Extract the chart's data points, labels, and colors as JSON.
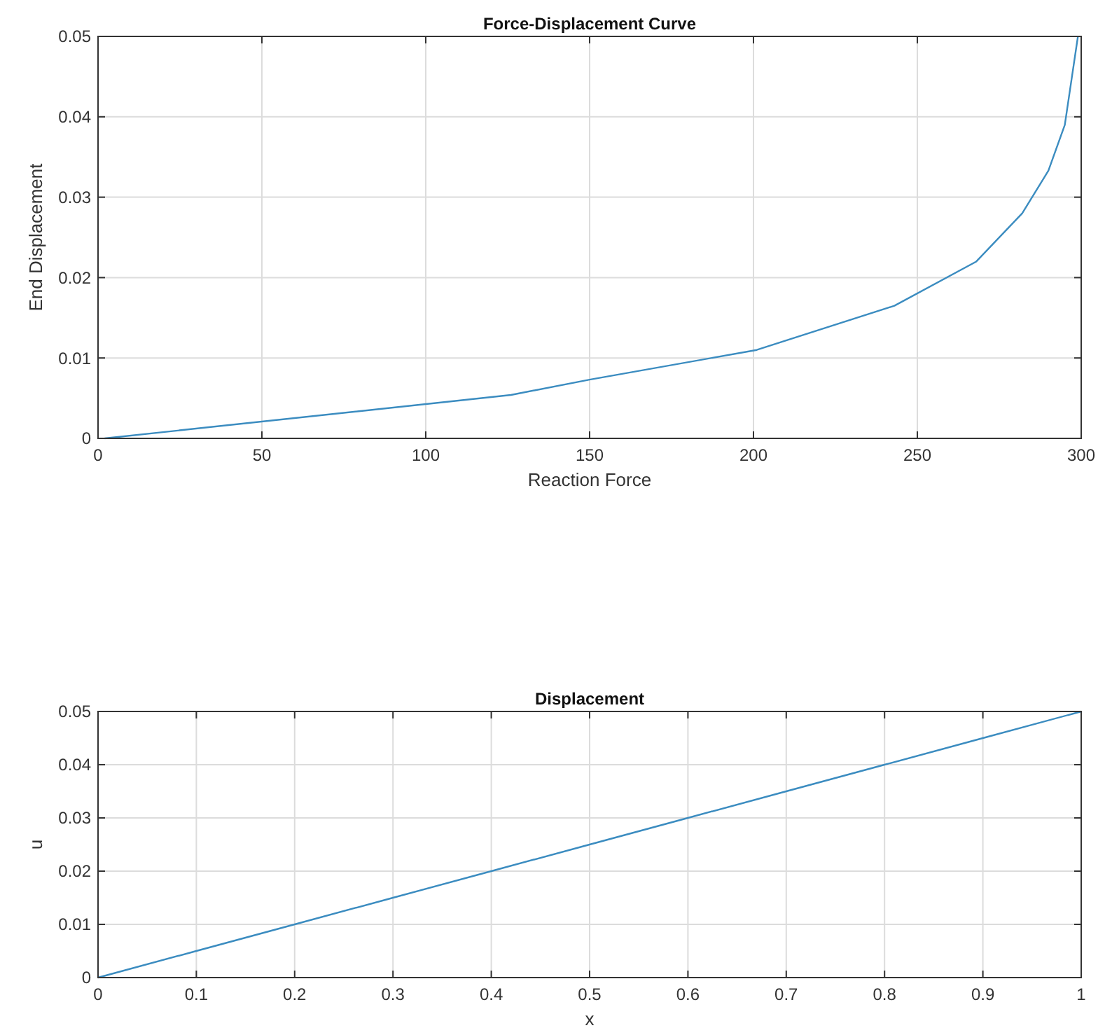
{
  "chart_data": [
    {
      "type": "line",
      "title": "Force-Displacement Curve",
      "xlabel": "Reaction Force",
      "ylabel": "End Displacement",
      "xlim": [
        0,
        300
      ],
      "xticks": [
        0,
        50,
        100,
        150,
        200,
        250,
        300
      ],
      "ylim": [
        0,
        0.05
      ],
      "yticks": [
        0,
        0.01,
        0.02,
        0.03,
        0.04,
        0.05
      ],
      "grid": true,
      "series": [
        {
          "color": "#3b8cc0",
          "x": [
            2,
            126,
            150,
            201,
            243,
            268,
            282,
            290,
            295,
            299
          ],
          "values": [
            0,
            0.0054,
            0.0073,
            0.011,
            0.0165,
            0.022,
            0.028,
            0.0333,
            0.039,
            0.05
          ]
        }
      ]
    },
    {
      "type": "line",
      "title": "Displacement",
      "xlabel": "x",
      "ylabel": "u",
      "xlim": [
        0,
        1
      ],
      "xticks": [
        0,
        0.1,
        0.2,
        0.3,
        0.4,
        0.5,
        0.6,
        0.7,
        0.8,
        0.9,
        1
      ],
      "ylim": [
        0,
        0.05
      ],
      "yticks": [
        0,
        0.01,
        0.02,
        0.03,
        0.04,
        0.05
      ],
      "grid": true,
      "series": [
        {
          "color": "#3b8cc0",
          "x": [
            0,
            0.1,
            0.2,
            0.3,
            0.4,
            0.5,
            0.6,
            0.7,
            0.8,
            0.9,
            1
          ],
          "values": [
            0,
            0.005,
            0.01,
            0.015,
            0.02,
            0.025,
            0.03,
            0.035,
            0.04,
            0.045,
            0.05
          ]
        }
      ]
    }
  ]
}
